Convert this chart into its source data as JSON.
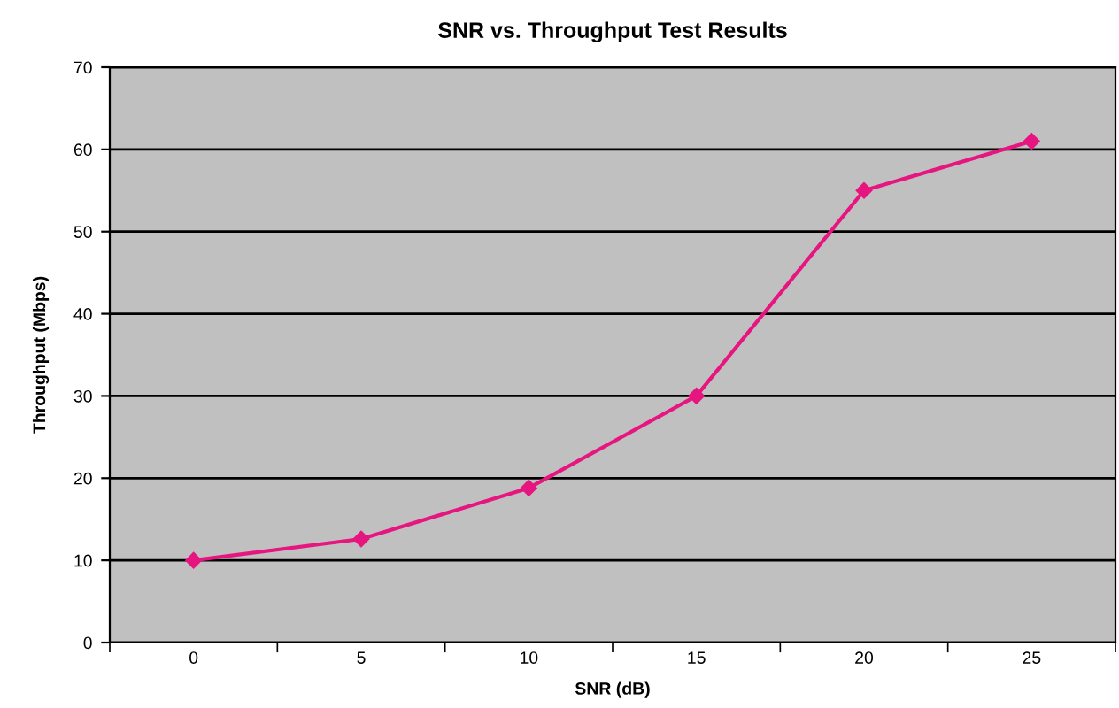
{
  "chart_data": {
    "type": "line",
    "title": "SNR vs. Throughput Test Results",
    "xlabel": "SNR (dB)",
    "ylabel": "Throughput (Mbps)",
    "categories": [
      "0",
      "5",
      "10",
      "15",
      "20",
      "25"
    ],
    "series": [
      {
        "color": "#e6157f",
        "values": [
          10,
          12.6,
          18.8,
          30,
          55,
          61
        ]
      }
    ],
    "ylim": [
      0,
      70
    ],
    "yticks": [
      0,
      10,
      20,
      30,
      40,
      50,
      60,
      70
    ],
    "grid": "y",
    "marker": "diamond",
    "line_style": "solid",
    "legend": false
  }
}
